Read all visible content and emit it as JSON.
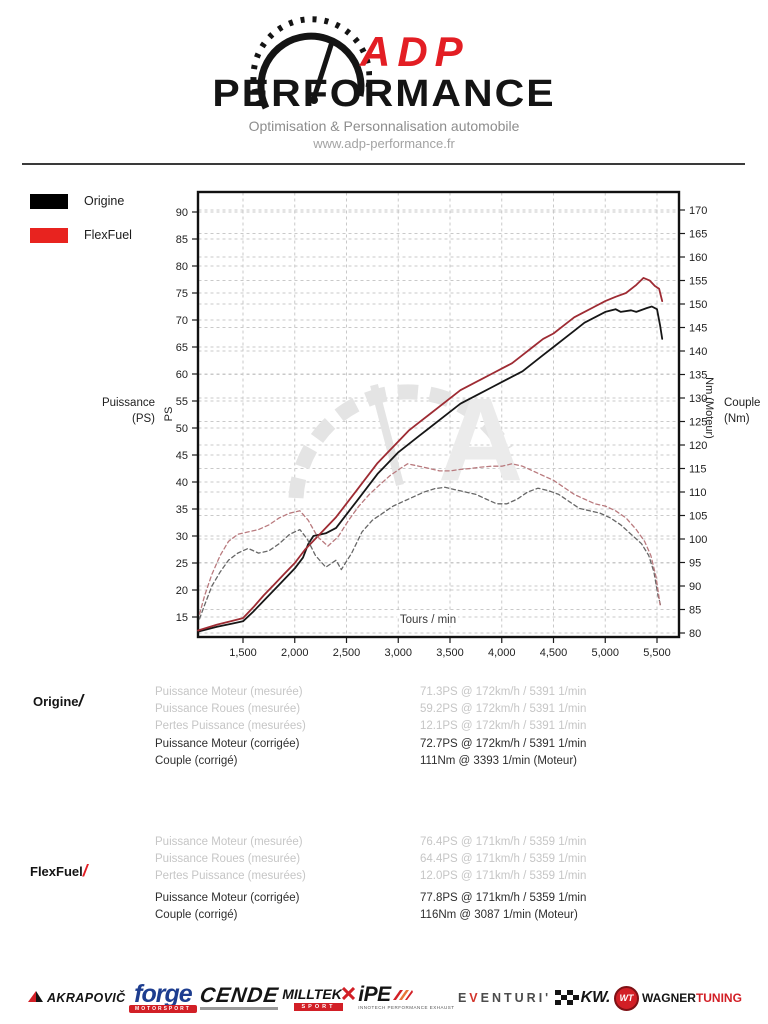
{
  "header": {
    "brand_top": "ADP",
    "brand_bottom": "PERFORMANCE",
    "tagline": "Optimisation & Personnalisation automobile",
    "website": "www.adp-performance.fr"
  },
  "legend": [
    {
      "label": "Origine",
      "color": "#000000"
    },
    {
      "label": "FlexFuel",
      "color": "#e8231f"
    }
  ],
  "chart_data": {
    "type": "line",
    "title": "",
    "axes": {
      "x_label": "Tours / min",
      "x_ticks": [
        1500,
        2000,
        2500,
        3000,
        3500,
        4000,
        4500,
        5000,
        5500
      ],
      "x_tick_labels": [
        "1,500",
        "2,000",
        "2,500",
        "3,000",
        "3,500",
        "4,000",
        "4,500",
        "5,000",
        "5,500"
      ],
      "x_range": [
        1065,
        5713
      ],
      "y_left_label": "PS",
      "y_left_outer_label_line1": "Puissance",
      "y_left_outer_label_line2": "(PS)",
      "y_left_ticks": [
        90,
        85,
        80,
        75,
        70,
        65,
        60,
        55,
        50,
        45,
        40,
        35,
        30,
        25,
        20,
        15
      ],
      "y_left_range": [
        11.3,
        93.7
      ],
      "y_right_label": "Nm (Moteur)",
      "y_right_outer_label_line1": "Couple",
      "y_right_outer_label_line2": "(Nm)",
      "y_right_ticks": [
        170,
        165,
        160,
        155,
        150,
        145,
        140,
        135,
        130,
        125,
        120,
        115,
        110,
        105,
        100,
        95,
        90,
        85,
        80
      ],
      "y_right_range": [
        79.1,
        173.8
      ],
      "grid": true
    },
    "series": [
      {
        "name": "Origine - Puissance (PS)",
        "axis": "left",
        "color": "#161616",
        "width": 1.8,
        "dashed": false,
        "points": [
          [
            1065,
            12.3
          ],
          [
            1250,
            13.2
          ],
          [
            1400,
            13.8
          ],
          [
            1500,
            14.2
          ],
          [
            1600,
            16
          ],
          [
            1700,
            18
          ],
          [
            1800,
            20
          ],
          [
            1900,
            22
          ],
          [
            2000,
            24
          ],
          [
            2080,
            26
          ],
          [
            2130,
            28.5
          ],
          [
            2180,
            30
          ],
          [
            2300,
            30.5
          ],
          [
            2400,
            31.5
          ],
          [
            2500,
            34
          ],
          [
            2600,
            36.5
          ],
          [
            2700,
            39
          ],
          [
            2800,
            41.5
          ],
          [
            2900,
            43.5
          ],
          [
            3000,
            45.5
          ],
          [
            3100,
            47
          ],
          [
            3200,
            48.5
          ],
          [
            3300,
            50
          ],
          [
            3400,
            51.5
          ],
          [
            3500,
            53
          ],
          [
            3600,
            54.5
          ],
          [
            3700,
            55.5
          ],
          [
            3800,
            56.5
          ],
          [
            3900,
            57.5
          ],
          [
            4000,
            58.5
          ],
          [
            4100,
            59.5
          ],
          [
            4200,
            60.5
          ],
          [
            4300,
            62
          ],
          [
            4400,
            63.5
          ],
          [
            4500,
            65
          ],
          [
            4600,
            66.5
          ],
          [
            4700,
            68
          ],
          [
            4800,
            69.5
          ],
          [
            4900,
            70.5
          ],
          [
            5000,
            71.5
          ],
          [
            5100,
            72
          ],
          [
            5150,
            71.5
          ],
          [
            5250,
            71.8
          ],
          [
            5300,
            71.5
          ],
          [
            5400,
            72.2
          ],
          [
            5450,
            72.5
          ],
          [
            5500,
            72
          ],
          [
            5530,
            69
          ],
          [
            5550,
            66.5
          ]
        ]
      },
      {
        "name": "FlexFuel - Puissance (PS)",
        "axis": "left",
        "color": "#9e2b33",
        "width": 1.8,
        "dashed": false,
        "points": [
          [
            1065,
            12.5
          ],
          [
            1250,
            13.6
          ],
          [
            1400,
            14.3
          ],
          [
            1500,
            14.8
          ],
          [
            1600,
            16.8
          ],
          [
            1700,
            19
          ],
          [
            1800,
            21
          ],
          [
            1900,
            23
          ],
          [
            2000,
            25
          ],
          [
            2100,
            27.5
          ],
          [
            2200,
            29.5
          ],
          [
            2300,
            31.5
          ],
          [
            2400,
            33.5
          ],
          [
            2500,
            36
          ],
          [
            2600,
            38.5
          ],
          [
            2700,
            41
          ],
          [
            2800,
            43.5
          ],
          [
            2900,
            45.5
          ],
          [
            3000,
            47.5
          ],
          [
            3100,
            49.5
          ],
          [
            3200,
            51
          ],
          [
            3300,
            52.5
          ],
          [
            3400,
            54
          ],
          [
            3500,
            55.5
          ],
          [
            3600,
            57
          ],
          [
            3700,
            58
          ],
          [
            3800,
            59
          ],
          [
            3900,
            60
          ],
          [
            4000,
            61
          ],
          [
            4100,
            62
          ],
          [
            4200,
            63.5
          ],
          [
            4300,
            65
          ],
          [
            4400,
            66.5
          ],
          [
            4500,
            67.5
          ],
          [
            4600,
            69
          ],
          [
            4700,
            70.5
          ],
          [
            4800,
            71.5
          ],
          [
            4900,
            72.5
          ],
          [
            5000,
            73.5
          ],
          [
            5100,
            74.3
          ],
          [
            5200,
            75
          ],
          [
            5300,
            76.5
          ],
          [
            5370,
            77.8
          ],
          [
            5430,
            77.3
          ],
          [
            5480,
            76.3
          ],
          [
            5520,
            75.8
          ],
          [
            5550,
            73.5
          ]
        ]
      },
      {
        "name": "Origine - Couple (Nm)",
        "axis": "right",
        "color": "#676767",
        "width": 1.3,
        "dashed": true,
        "points": [
          [
            1080,
            83
          ],
          [
            1130,
            86
          ],
          [
            1200,
            90
          ],
          [
            1280,
            93
          ],
          [
            1360,
            95.5
          ],
          [
            1450,
            97
          ],
          [
            1550,
            98
          ],
          [
            1650,
            97
          ],
          [
            1750,
            97.5
          ],
          [
            1850,
            99
          ],
          [
            1950,
            101
          ],
          [
            2050,
            102
          ],
          [
            2120,
            100
          ],
          [
            2200,
            96.5
          ],
          [
            2300,
            94
          ],
          [
            2400,
            95.5
          ],
          [
            2450,
            93.5
          ],
          [
            2550,
            97
          ],
          [
            2650,
            101.5
          ],
          [
            2750,
            104
          ],
          [
            2850,
            105.5
          ],
          [
            2950,
            107
          ],
          [
            3050,
            108
          ],
          [
            3150,
            109
          ],
          [
            3250,
            110
          ],
          [
            3350,
            110.7
          ],
          [
            3450,
            111
          ],
          [
            3550,
            110.5
          ],
          [
            3650,
            110
          ],
          [
            3750,
            109.5
          ],
          [
            3850,
            108.5
          ],
          [
            3950,
            107.5
          ],
          [
            4050,
            107.5
          ],
          [
            4150,
            108.5
          ],
          [
            4250,
            110
          ],
          [
            4350,
            110.8
          ],
          [
            4450,
            110.3
          ],
          [
            4550,
            109.5
          ],
          [
            4650,
            108
          ],
          [
            4750,
            106.5
          ],
          [
            4850,
            106
          ],
          [
            4950,
            105.5
          ],
          [
            5050,
            104.5
          ],
          [
            5150,
            103
          ],
          [
            5250,
            101
          ],
          [
            5350,
            99
          ],
          [
            5420,
            96.5
          ],
          [
            5470,
            93
          ],
          [
            5510,
            88
          ],
          [
            5540,
            85.5
          ]
        ]
      },
      {
        "name": "FlexFuel - Couple (Nm)",
        "axis": "right",
        "color": "#b97a7e",
        "width": 1.3,
        "dashed": true,
        "points": [
          [
            1080,
            84
          ],
          [
            1130,
            88
          ],
          [
            1200,
            92.5
          ],
          [
            1280,
            96.5
          ],
          [
            1360,
            99.5
          ],
          [
            1450,
            101
          ],
          [
            1550,
            101.5
          ],
          [
            1650,
            102
          ],
          [
            1750,
            103
          ],
          [
            1850,
            104.5
          ],
          [
            1950,
            105.5
          ],
          [
            2050,
            106
          ],
          [
            2130,
            104
          ],
          [
            2220,
            100.5
          ],
          [
            2320,
            98.5
          ],
          [
            2420,
            100.5
          ],
          [
            2520,
            104
          ],
          [
            2620,
            107
          ],
          [
            2720,
            109.5
          ],
          [
            2820,
            111.5
          ],
          [
            2920,
            113.5
          ],
          [
            3020,
            115
          ],
          [
            3090,
            116
          ],
          [
            3200,
            115.5
          ],
          [
            3300,
            115
          ],
          [
            3400,
            114.5
          ],
          [
            3500,
            114.5
          ],
          [
            3600,
            114.8
          ],
          [
            3700,
            115
          ],
          [
            3800,
            115.3
          ],
          [
            3900,
            115.5
          ],
          [
            4000,
            115.5
          ],
          [
            4100,
            116
          ],
          [
            4200,
            115.5
          ],
          [
            4300,
            114.5
          ],
          [
            4400,
            113.5
          ],
          [
            4500,
            112.5
          ],
          [
            4600,
            111
          ],
          [
            4700,
            109.5
          ],
          [
            4800,
            108.5
          ],
          [
            4900,
            107.5
          ],
          [
            5000,
            107
          ],
          [
            5100,
            106
          ],
          [
            5200,
            104.5
          ],
          [
            5300,
            102
          ],
          [
            5380,
            99.5
          ],
          [
            5440,
            96.5
          ],
          [
            5490,
            92
          ],
          [
            5530,
            86
          ]
        ]
      }
    ]
  },
  "results": {
    "origine": {
      "title": "Origine",
      "slash": "/",
      "rows": [
        {
          "label": "Puissance Moteur (mesurée)",
          "value": "71.3PS @ 172km/h / 5391 1/min"
        },
        {
          "label": "Puissance Roues (mesurée)",
          "value": "59.2PS @ 172km/h / 5391 1/min"
        },
        {
          "label": "Pertes Puissance (mesurées)",
          "value": "12.1PS @ 172km/h / 5391 1/min"
        },
        {
          "label": "Puissance Moteur (corrigée)",
          "value": "72.7PS @ 172km/h / 5391 1/min"
        },
        {
          "label": "Couple (corrigé)",
          "value": "111Nm @ 3393 1/min (Moteur)"
        }
      ]
    },
    "flexfuel": {
      "title": "FlexFuel",
      "slash": "/",
      "rows": [
        {
          "label": "Puissance Moteur (mesurée)",
          "value": "76.4PS @ 171km/h / 5359 1/min"
        },
        {
          "label": "Puissance Roues (mesurée)",
          "value": "64.4PS @ 171km/h / 5359 1/min"
        },
        {
          "label": "Pertes Puissance (mesurées)",
          "value": "12.0PS @ 171km/h / 5359 1/min"
        },
        {
          "label": "Puissance Moteur (corrigée)",
          "value": "77.8PS @ 171km/h / 5359 1/min"
        },
        {
          "label": "Couple (corrigé)",
          "value": "116Nm @ 3087 1/min (Moteur)"
        }
      ]
    }
  },
  "footer": {
    "brands": [
      {
        "name": "AKRAPOVIČ"
      },
      {
        "name": "forge",
        "sub": "MOTORSPORT"
      },
      {
        "name": "CENDE"
      },
      {
        "name": "MILLTEK",
        "sub": "SPORT"
      },
      {
        "name": "iPE",
        "sub": "INNOTECH PERFORMANCE EXHAUST"
      },
      {
        "name": "EVENTURI",
        "pre": "E",
        "accent": "V",
        "post": "ENTURI'"
      },
      {
        "name": "KW."
      },
      {
        "name": "WAGNER",
        "name2": "TUNING"
      }
    ]
  }
}
